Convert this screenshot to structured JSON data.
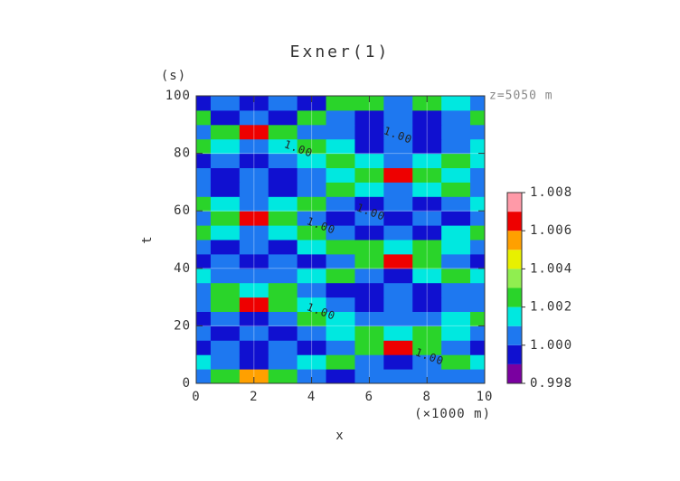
{
  "chart_data": {
    "type": "contour",
    "title": "Exner(1)",
    "xlabel": "x",
    "xunit": "(×1000 m)",
    "ylabel": "t",
    "yunit": "(s)",
    "annotation": "z=5050 m",
    "contour_label": "1.00",
    "x": [
      0,
      1,
      2,
      3,
      4,
      5,
      6,
      7,
      8,
      9,
      10
    ],
    "y": [
      2.5,
      7.5,
      12.5,
      17.5,
      22.5,
      27.5,
      32.5,
      37.5,
      42.5,
      47.5,
      52.5,
      57.5,
      62.5,
      67.5,
      72.5,
      77.5,
      82.5,
      87.5,
      92.5,
      97.5
    ],
    "z": [
      [
        1.0005,
        1.0025,
        1.0055,
        1.0025,
        1.0005,
        0.9995,
        1.0005,
        1.0005,
        1.0005,
        1.0005,
        1.0005
      ],
      [
        1.0015,
        1.0005,
        0.9995,
        1.0005,
        1.0015,
        1.0025,
        1.0005,
        0.9995,
        1.0005,
        1.0025,
        1.0015
      ],
      [
        0.9995,
        1.0005,
        0.9995,
        1.0005,
        0.9995,
        1.0005,
        1.0025,
        1.0065,
        1.0025,
        1.0005,
        0.9995
      ],
      [
        1.0005,
        0.9995,
        1.0005,
        0.9995,
        1.0005,
        1.0015,
        1.0025,
        1.0015,
        1.0025,
        1.0015,
        1.0005
      ],
      [
        0.9995,
        1.0005,
        0.9995,
        1.0005,
        1.0025,
        1.0015,
        1.0005,
        1.0005,
        1.0005,
        1.0015,
        1.0025
      ],
      [
        1.0005,
        1.0025,
        1.0065,
        1.0025,
        1.0015,
        1.0005,
        0.9995,
        1.0005,
        0.9995,
        1.0005,
        1.0005
      ],
      [
        1.0005,
        1.0025,
        1.0015,
        1.0025,
        1.0005,
        0.9995,
        0.9995,
        1.0005,
        0.9995,
        1.0005,
        1.0005
      ],
      [
        1.0015,
        1.0005,
        1.0005,
        1.0005,
        1.0015,
        1.0025,
        1.0005,
        0.9995,
        1.0015,
        1.0025,
        1.0015
      ],
      [
        0.9995,
        1.0005,
        0.9995,
        1.0005,
        0.9995,
        1.0005,
        1.0025,
        1.0065,
        1.0025,
        1.0005,
        0.9995
      ],
      [
        1.0005,
        0.9995,
        1.0005,
        0.9995,
        1.0015,
        1.0025,
        1.0025,
        1.0015,
        1.0025,
        1.0015,
        1.0005
      ],
      [
        1.0025,
        1.0015,
        1.0005,
        1.0015,
        1.0025,
        1.0005,
        0.9995,
        1.0005,
        0.9995,
        1.0015,
        1.0025
      ],
      [
        1.0005,
        1.0025,
        1.0065,
        1.0025,
        1.0005,
        0.9995,
        1.0005,
        0.9995,
        1.0005,
        0.9995,
        1.0005
      ],
      [
        1.0025,
        1.0015,
        1.0005,
        1.0015,
        1.0025,
        1.0005,
        0.9995,
        1.0005,
        0.9995,
        1.0005,
        1.0015
      ],
      [
        1.0005,
        0.9995,
        1.0005,
        0.9995,
        1.0005,
        1.0025,
        1.0015,
        1.0005,
        1.0015,
        1.0025,
        1.0005
      ],
      [
        1.0005,
        0.9995,
        1.0005,
        0.9995,
        1.0005,
        1.0015,
        1.0025,
        1.0065,
        1.0025,
        1.0015,
        1.0005
      ],
      [
        0.9995,
        1.0005,
        0.9995,
        1.0005,
        1.0015,
        1.0025,
        1.0015,
        1.0005,
        1.0015,
        1.0025,
        1.0015
      ],
      [
        1.0025,
        1.0015,
        1.0005,
        1.0015,
        1.0025,
        1.0015,
        0.9995,
        1.0005,
        0.9995,
        1.0005,
        1.0015
      ],
      [
        1.0005,
        1.0025,
        1.0065,
        1.0025,
        1.0005,
        1.0005,
        0.9995,
        1.0005,
        0.9995,
        1.0005,
        1.0005
      ],
      [
        1.0025,
        0.9995,
        1.0005,
        0.9995,
        1.0025,
        1.0005,
        0.9995,
        1.0005,
        0.9995,
        1.0005,
        1.0025
      ],
      [
        0.9995,
        1.0005,
        0.9995,
        1.0005,
        0.9995,
        1.0025,
        1.0025,
        1.0005,
        1.0025,
        1.0015,
        1.0005
      ]
    ],
    "levels": [
      0.998,
      0.999,
      1.0,
      1.001,
      1.002,
      1.003,
      1.004,
      1.005,
      1.006,
      1.007,
      1.008
    ],
    "colors": [
      "#7a00a0",
      "#1010d0",
      "#1e78f0",
      "#00e8e0",
      "#2ad42a",
      "#90ee50",
      "#e8f000",
      "#ffa000",
      "#ee0000",
      "#ff9aa8"
    ],
    "cbar_ticks": [
      0.998,
      {
        "value": 1.0,
        "label": "1.000"
      },
      1.002,
      1.004,
      1.006,
      1.008
    ],
    "xlim": [
      0,
      10
    ],
    "xticks": [
      0,
      2,
      4,
      6,
      8,
      10
    ],
    "ylim": [
      0,
      100
    ],
    "yticks": [
      0,
      20,
      40,
      60,
      80,
      100
    ],
    "grid": true
  }
}
